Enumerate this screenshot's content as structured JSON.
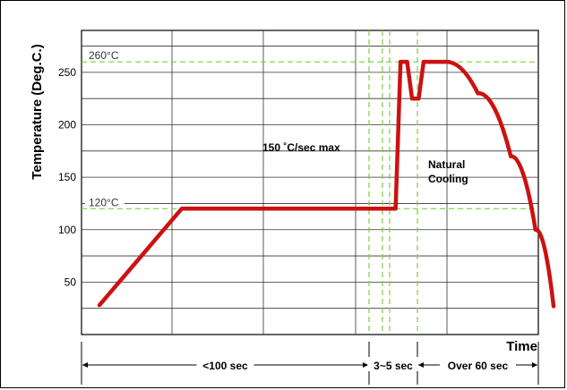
{
  "chart_data": {
    "type": "line",
    "title": "",
    "ylabel": "Temperature (Deg.C.)",
    "xlabel": "Time",
    "ylim": [
      0,
      290
    ],
    "yticks": [
      50,
      100,
      150,
      200,
      250
    ],
    "grid": true,
    "reference_lines": [
      {
        "label": "260°C",
        "y": 260
      },
      {
        "label": "120°C",
        "y": 120
      }
    ],
    "annotations": [
      {
        "text": "150 ˚C/sec max"
      },
      {
        "text": "Natural"
      },
      {
        "text": "Cooling"
      }
    ],
    "durations": [
      {
        "label": "<100 sec"
      },
      {
        "label": "3~5 sec"
      },
      {
        "label": "Over 60 sec"
      }
    ],
    "series": [
      {
        "color": "#cc1111",
        "points": [
          [
            0,
            28
          ],
          [
            50,
            120
          ],
          [
            180,
            120
          ],
          [
            183,
            260
          ],
          [
            187,
            260
          ],
          [
            190,
            225
          ],
          [
            194,
            225
          ],
          [
            197,
            260
          ],
          [
            210,
            260
          ],
          [
            230,
            230
          ],
          [
            250,
            170
          ],
          [
            265,
            100
          ],
          [
            276,
            27
          ]
        ]
      }
    ]
  }
}
